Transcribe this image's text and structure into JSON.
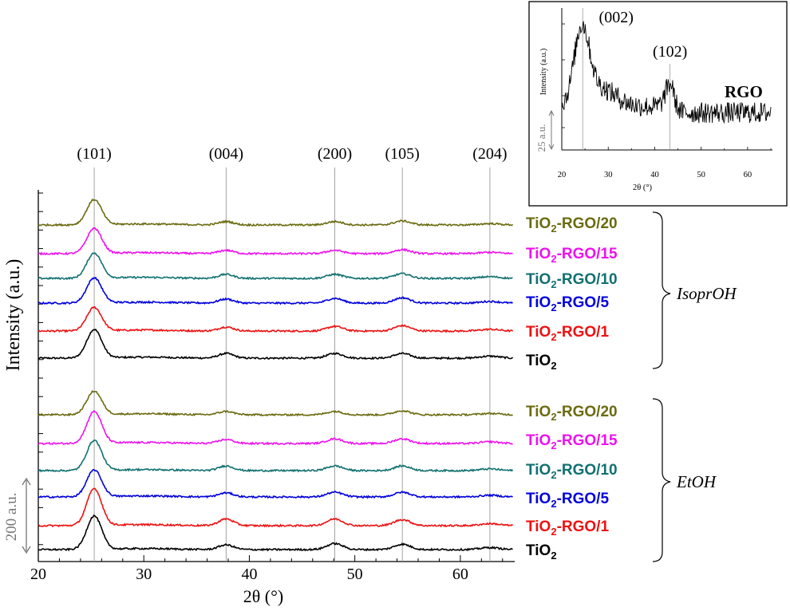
{
  "chart_data": [
    {
      "type": "line",
      "title": "",
      "xlabel": "2θ (°)",
      "ylabel": "Intensity (a.u.)",
      "xlim": [
        20,
        65
      ],
      "xticks": [
        20,
        30,
        40,
        50,
        60
      ],
      "scale_bar": "200 a.u.",
      "peaks": [
        {
          "label": "(101)",
          "x": 25.3
        },
        {
          "label": "(004)",
          "x": 37.8
        },
        {
          "label": "(200)",
          "x": 48.1
        },
        {
          "label": "(105)",
          "x": 54.5
        },
        {
          "label": "(204)",
          "x": 62.8
        }
      ],
      "groups": [
        {
          "name": "IsoprOH",
          "series": [
            {
              "name": "TiO2",
              "base": "TiO",
              "sub": "2",
              "tail": "",
              "color": "#000000",
              "amps": [
                85,
                14,
                14,
                14,
                6
              ]
            },
            {
              "name": "TiO2-RGO/1",
              "base": "TiO",
              "sub": "2",
              "tail": "-RGO/1",
              "color": "#ee1111",
              "amps": [
                70,
                12,
                14,
                16,
                5
              ]
            },
            {
              "name": "TiO2-RGO/5",
              "base": "TiO",
              "sub": "2",
              "tail": "-RGO/5",
              "color": "#0000dd",
              "amps": [
                75,
                12,
                14,
                16,
                5
              ]
            },
            {
              "name": "TiO2-RGO/10",
              "base": "TiO",
              "sub": "2",
              "tail": "-RGO/10",
              "color": "#117070",
              "amps": [
                75,
                12,
                12,
                14,
                5
              ]
            },
            {
              "name": "TiO2-RGO/15",
              "base": "TiO",
              "sub": "2",
              "tail": "-RGO/15",
              "color": "#ee11ee",
              "amps": [
                75,
                10,
                10,
                12,
                4
              ]
            },
            {
              "name": "TiO2-RGO/20",
              "base": "TiO",
              "sub": "2",
              "tail": "-RGO/20",
              "color": "#6b6b10",
              "amps": [
                75,
                10,
                10,
                12,
                4
              ]
            }
          ]
        },
        {
          "name": "EtOH",
          "series": [
            {
              "name": "TiO2",
              "base": "TiO",
              "sub": "2",
              "tail": "",
              "color": "#000000",
              "amps": [
                100,
                14,
                18,
                16,
                6
              ]
            },
            {
              "name": "TiO2-RGO/1",
              "base": "TiO",
              "sub": "2",
              "tail": "-RGO/1",
              "color": "#ee1111",
              "amps": [
                110,
                20,
                20,
                18,
                6
              ]
            },
            {
              "name": "TiO2-RGO/5",
              "base": "TiO",
              "sub": "2",
              "tail": "-RGO/5",
              "color": "#0000dd",
              "amps": [
                80,
                12,
                14,
                14,
                5
              ]
            },
            {
              "name": "TiO2-RGO/10",
              "base": "TiO",
              "sub": "2",
              "tail": "-RGO/10",
              "color": "#117070",
              "amps": [
                90,
                14,
                14,
                14,
                5
              ]
            },
            {
              "name": "TiO2-RGO/15",
              "base": "TiO",
              "sub": "2",
              "tail": "-RGO/15",
              "color": "#ee11ee",
              "amps": [
                95,
                12,
                14,
                14,
                5
              ]
            },
            {
              "name": "TiO2-RGO/20",
              "base": "TiO",
              "sub": "2",
              "tail": "-RGO/20",
              "color": "#6b6b10",
              "amps": [
                70,
                10,
                10,
                12,
                4
              ]
            }
          ]
        }
      ]
    },
    {
      "type": "line",
      "title": "RGO",
      "xlabel": "2θ (°)",
      "ylabel": "Intensity (a.u.)",
      "xlim": [
        20,
        65
      ],
      "xticks": [
        20,
        30,
        40,
        50,
        60
      ],
      "scale_bar": "25 a.u.",
      "peaks": [
        {
          "label": "(002)",
          "x": 24.5
        },
        {
          "label": "(102)",
          "x": 43.3
        }
      ]
    }
  ]
}
